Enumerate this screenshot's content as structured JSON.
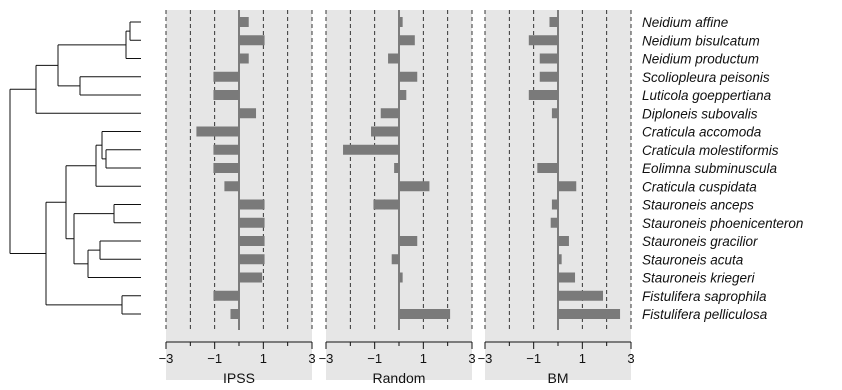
{
  "chart_data": {
    "type": "bar",
    "orientation": "horizontal",
    "grid": true,
    "legend": "none",
    "categories": [
      "Neidium affine",
      "Neidium bisulcatum",
      "Neidium productum",
      "Scoliopleura peisonis",
      "Luticola goeppertiana",
      "Diploneis subovalis",
      "Craticula accomoda",
      "Craticula molestiformis",
      "Eolimna subminuscula",
      "Craticula cuspidata",
      "Stauroneis anceps",
      "Stauroneis phoenicenteron",
      "Stauroneis gracilior",
      "Stauroneis acuta",
      "Stauroneis kriegeri",
      "Fistulifera saprophila",
      "Fistulifera pelliculosa"
    ],
    "xlim": [
      -3,
      3
    ],
    "xticks": [
      -3,
      -1,
      1,
      3
    ],
    "series": [
      {
        "name": "IPSS",
        "values": [
          0.4,
          1.05,
          0.4,
          -1.05,
          -1.05,
          0.7,
          -1.75,
          -1.05,
          -1.05,
          -0.6,
          1.05,
          1.05,
          1.05,
          1.05,
          0.95,
          -1.05,
          -0.35
        ]
      },
      {
        "name": "Random",
        "values": [
          0.15,
          0.65,
          -0.45,
          0.75,
          0.3,
          -0.75,
          -1.15,
          -2.3,
          -0.2,
          1.25,
          -1.05,
          0.0,
          0.75,
          -0.3,
          0.15,
          0.0,
          2.1
        ]
      },
      {
        "name": "BM",
        "values": [
          -0.35,
          -1.2,
          -0.75,
          -0.75,
          -1.2,
          -0.25,
          0.0,
          0.0,
          -0.85,
          0.75,
          -0.25,
          -0.3,
          0.45,
          0.15,
          0.7,
          1.85,
          2.55
        ]
      }
    ]
  }
}
